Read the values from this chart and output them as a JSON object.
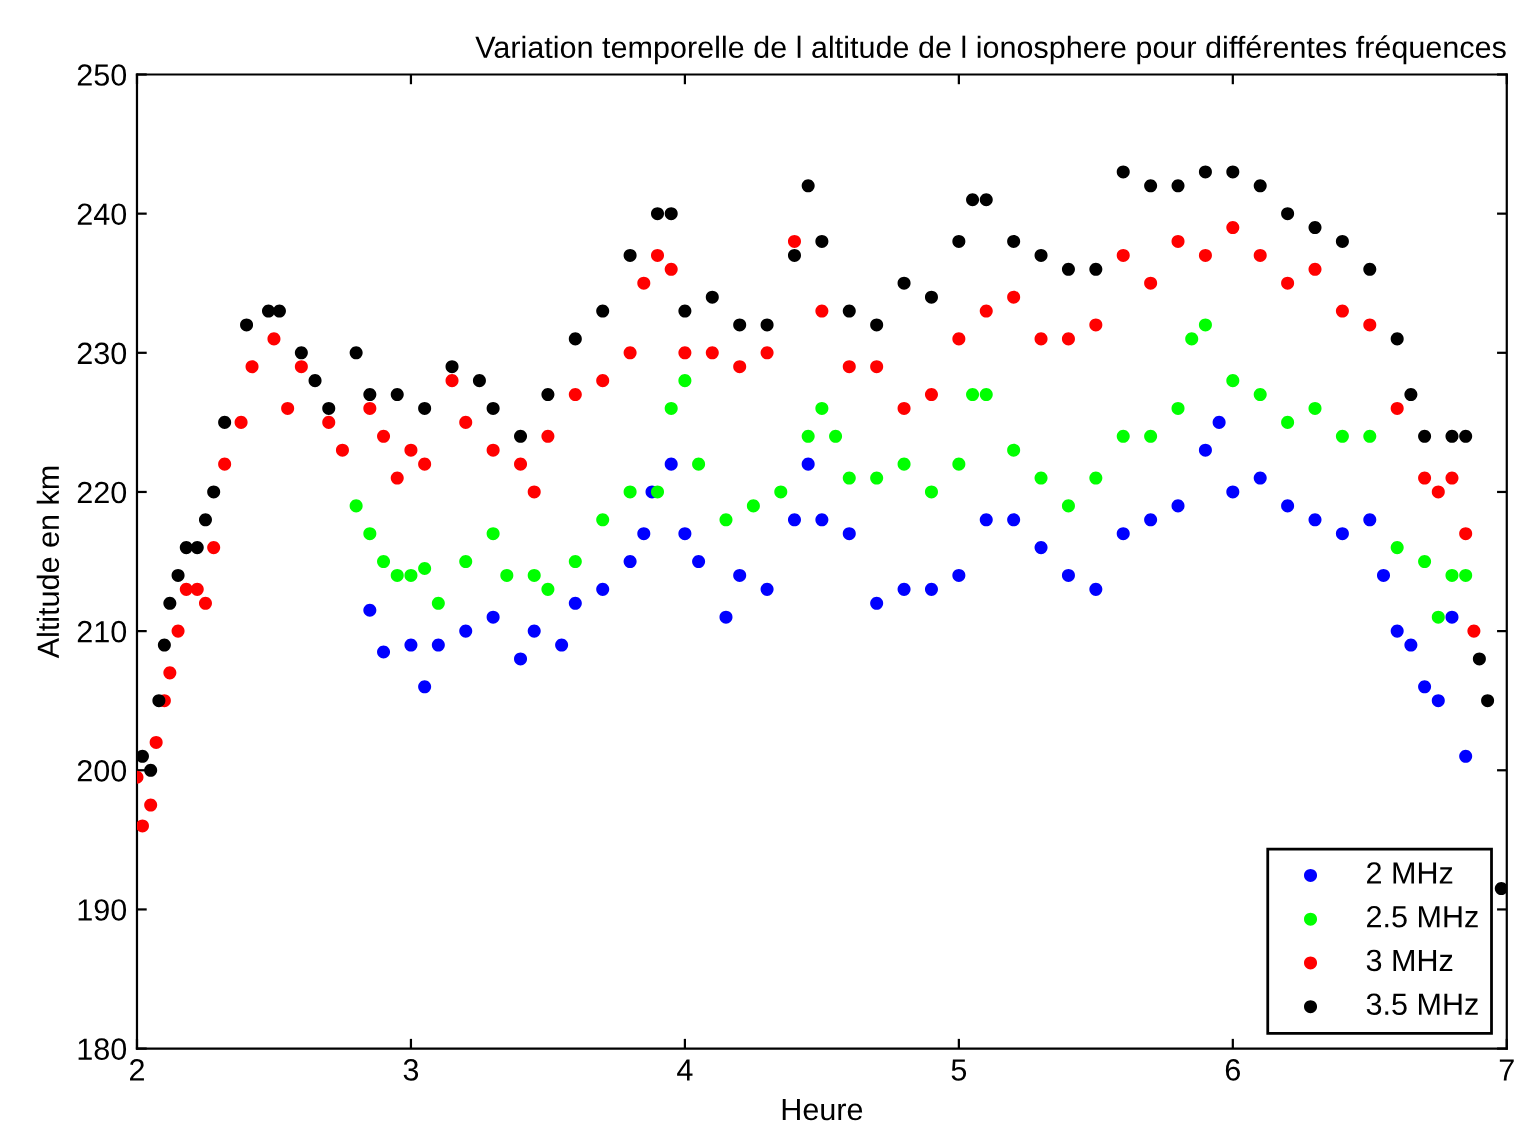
{
  "chart_data": {
    "type": "scatter",
    "title": "Variation temporelle de l altitude de l ionosphere pour différentes fréquences",
    "xlabel": "Heure",
    "ylabel": "Altitude en km",
    "xlim": [
      2,
      7
    ],
    "xticks": [
      2,
      3,
      4,
      5,
      6,
      7
    ],
    "ylim": [
      180,
      250
    ],
    "yticks": [
      180,
      190,
      200,
      210,
      220,
      230,
      240,
      250
    ],
    "grid": false,
    "legend": "bottom right",
    "marker": "circle",
    "series": [
      {
        "name": "2 MHz",
        "color": "#0000ff",
        "x": [
          2.85,
          2.9,
          3.0,
          3.05,
          3.1,
          3.2,
          3.3,
          3.4,
          3.45,
          3.55,
          3.6,
          3.7,
          3.8,
          3.85,
          3.88,
          3.95,
          4.0,
          4.05,
          4.15,
          4.2,
          4.3,
          4.4,
          4.45,
          4.5,
          4.6,
          4.7,
          4.8,
          4.9,
          5.0,
          5.1,
          5.2,
          5.3,
          5.4,
          5.5,
          5.6,
          5.7,
          5.8,
          5.9,
          5.95,
          6.0,
          6.1,
          6.2,
          6.3,
          6.4,
          6.5,
          6.55,
          6.6,
          6.65,
          6.7,
          6.75,
          6.8,
          6.85
        ],
        "values": [
          211.5,
          208.5,
          209,
          206,
          209,
          210,
          211,
          208,
          210,
          209,
          212,
          213,
          215,
          217,
          220,
          222,
          217,
          215,
          211,
          214,
          213,
          218,
          222,
          218,
          217,
          212,
          213,
          213,
          214,
          218,
          218,
          216,
          214,
          213,
          217,
          218,
          219,
          223,
          225,
          220,
          221,
          219,
          218,
          217,
          218,
          214,
          210,
          209,
          206,
          205,
          211,
          201
        ]
      },
      {
        "name": "2.5 MHz",
        "color": "#00ff00",
        "x": [
          2.8,
          2.85,
          2.9,
          2.95,
          3.0,
          3.05,
          3.1,
          3.2,
          3.3,
          3.35,
          3.45,
          3.5,
          3.6,
          3.7,
          3.8,
          3.9,
          3.95,
          4.0,
          4.05,
          4.15,
          4.25,
          4.35,
          4.45,
          4.5,
          4.55,
          4.6,
          4.7,
          4.8,
          4.9,
          5.0,
          5.05,
          5.1,
          5.2,
          5.3,
          5.4,
          5.5,
          5.6,
          5.7,
          5.8,
          5.85,
          5.9,
          6.0,
          6.1,
          6.2,
          6.3,
          6.4,
          6.5,
          6.6,
          6.7,
          6.75,
          6.8,
          6.85
        ],
        "values": [
          219,
          217,
          215,
          214,
          214,
          214.5,
          212,
          215,
          217,
          214,
          214,
          213,
          215,
          218,
          220,
          220,
          226,
          228,
          222,
          218,
          219,
          220,
          224,
          226,
          224,
          221,
          221,
          222,
          220,
          222,
          227,
          227,
          223,
          221,
          219,
          221,
          224,
          224,
          226,
          231,
          232,
          228,
          227,
          225,
          226,
          224,
          224,
          216,
          215,
          211,
          214,
          214
        ]
      },
      {
        "name": "3 MHz",
        "color": "#ff0000",
        "x": [
          2.0,
          2.02,
          2.05,
          2.07,
          2.1,
          2.12,
          2.15,
          2.18,
          2.22,
          2.25,
          2.28,
          2.32,
          2.38,
          2.42,
          2.5,
          2.55,
          2.6,
          2.7,
          2.75,
          2.85,
          2.9,
          2.95,
          3.0,
          3.05,
          3.15,
          3.2,
          3.3,
          3.4,
          3.45,
          3.5,
          3.6,
          3.7,
          3.8,
          3.85,
          3.9,
          3.95,
          4.0,
          4.1,
          4.2,
          4.3,
          4.4,
          4.5,
          4.6,
          4.7,
          4.8,
          4.9,
          5.0,
          5.1,
          5.2,
          5.3,
          5.4,
          5.5,
          5.6,
          5.7,
          5.8,
          5.9,
          6.0,
          6.1,
          6.2,
          6.3,
          6.4,
          6.5,
          6.6,
          6.7,
          6.75,
          6.8,
          6.85,
          6.88
        ],
        "values": [
          199.5,
          196,
          197.5,
          202,
          205,
          207,
          210,
          213,
          213,
          212,
          216,
          222,
          225,
          229,
          231,
          226,
          229,
          225,
          223,
          226,
          224,
          221,
          223,
          222,
          228,
          225,
          223,
          222,
          220,
          224,
          227,
          228,
          230,
          235,
          237,
          236,
          230,
          230,
          229,
          230,
          238,
          233,
          229,
          229,
          226,
          227,
          231,
          233,
          234,
          231,
          231,
          232,
          237,
          235,
          238,
          237,
          239,
          237,
          235,
          236,
          233,
          232,
          226,
          221,
          220,
          221,
          217,
          210
        ]
      },
      {
        "name": "3.5 MHz",
        "color": "#000000",
        "x": [
          2.02,
          2.05,
          2.08,
          2.1,
          2.12,
          2.15,
          2.18,
          2.22,
          2.25,
          2.28,
          2.32,
          2.4,
          2.48,
          2.52,
          2.6,
          2.65,
          2.7,
          2.8,
          2.85,
          2.95,
          3.05,
          3.15,
          3.25,
          3.3,
          3.4,
          3.5,
          3.6,
          3.7,
          3.8,
          3.9,
          3.95,
          4.0,
          4.1,
          4.2,
          4.3,
          4.4,
          4.45,
          4.5,
          4.6,
          4.7,
          4.8,
          4.9,
          5.0,
          5.05,
          5.1,
          5.2,
          5.3,
          5.4,
          5.5,
          5.6,
          5.7,
          5.8,
          5.9,
          6.0,
          6.1,
          6.2,
          6.3,
          6.4,
          6.5,
          6.6,
          6.65,
          6.7,
          6.8,
          6.85,
          6.9,
          6.93,
          6.98
        ],
        "values": [
          201,
          200,
          205,
          209,
          212,
          214,
          216,
          216,
          218,
          220,
          225,
          232,
          233,
          233,
          230,
          228,
          226,
          230,
          227,
          227,
          226,
          229,
          228,
          226,
          224,
          227,
          231,
          233,
          237,
          240,
          240,
          233,
          234,
          232,
          232,
          237,
          242,
          238,
          233,
          232,
          235,
          234,
          238,
          241,
          241,
          238,
          237,
          236,
          236,
          243,
          242,
          242,
          243,
          243,
          242,
          240,
          239,
          238,
          236,
          231,
          227,
          224,
          224,
          224,
          208,
          205,
          191.5
        ]
      }
    ]
  }
}
